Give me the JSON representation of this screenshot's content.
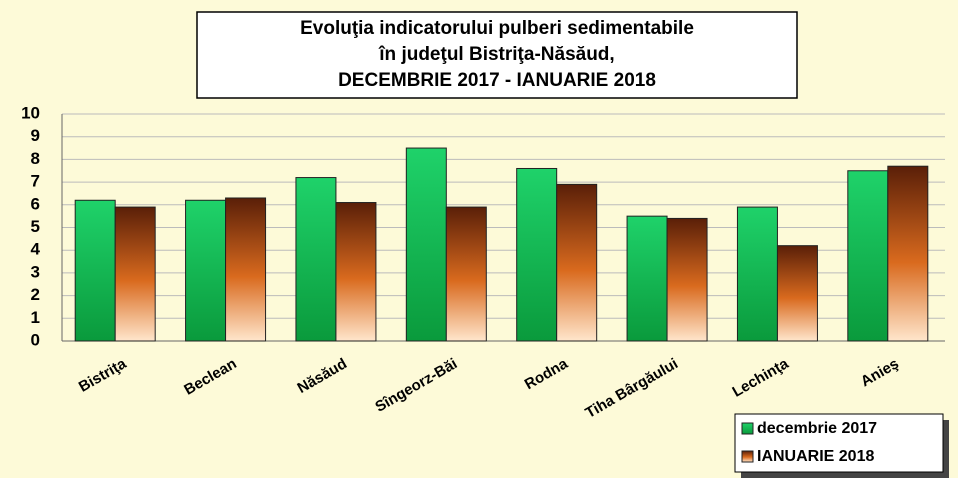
{
  "chart_data": {
    "type": "bar",
    "title": [
      "Evoluţia indicatorului pulberi sedimentabile",
      "în judeţul Bistriţa-Năsăud,",
      "DECEMBRIE 2017 - IANUARIE 2018"
    ],
    "categories": [
      "Bistriţa",
      "Beclean",
      "Năsăud",
      "Sîngeorz-Băi",
      "Rodna",
      "Tiha Bârgăului",
      "Lechinţa",
      "Anieş"
    ],
    "series": [
      {
        "name": "decembrie 2017",
        "color": "#1fd26a",
        "values": [
          6.2,
          6.2,
          7.2,
          8.5,
          7.6,
          5.5,
          5.9,
          7.5
        ]
      },
      {
        "name": "IANUARIE 2018",
        "color": "#d96a1e",
        "values": [
          5.9,
          6.3,
          6.1,
          5.9,
          6.9,
          5.4,
          4.2,
          7.7
        ]
      }
    ],
    "ylim": [
      0,
      10
    ],
    "yticks": [
      0,
      1,
      2,
      3,
      4,
      5,
      6,
      7,
      8,
      9,
      10
    ],
    "grid": true,
    "legend": "bottom-right"
  }
}
